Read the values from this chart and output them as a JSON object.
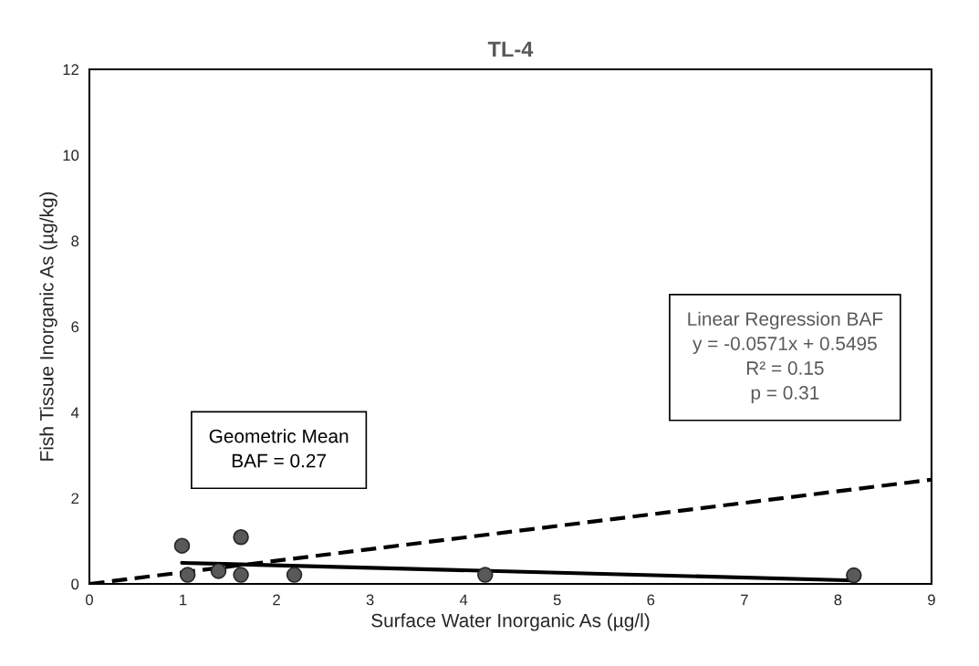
{
  "chart_data": {
    "type": "scatter",
    "title": "TL-4",
    "xlabel": "Surface Water Inorganic As (µg/l)",
    "ylabel": "Fish Tissue Inorganic As (µg/kg)",
    "series": [
      {
        "color": "#595959",
        "marker": "circle",
        "x": [
          0.99,
          1.05,
          1.38,
          1.62,
          1.62,
          2.19,
          4.23,
          8.17
        ],
        "values": [
          0.89,
          0.21,
          0.3,
          1.09,
          0.21,
          0.21,
          0.21,
          0.2
        ]
      },
      {
        "type": "line",
        "color": "#000000",
        "line_style": "solid",
        "x": [
          0.99,
          8.17
        ],
        "values": [
          0.49,
          0.08
        ]
      },
      {
        "type": "line",
        "color": "#000000",
        "line_style": "dashed",
        "x": [
          0,
          9
        ],
        "values": [
          0,
          2.43
        ]
      }
    ],
    "annotations": [
      "Geometric Mean\nBAF = 0.27",
      "Linear Regression BAF\ny = -0.0571x + 0.5495\nR² = 0.15\np = 0.31"
    ],
    "xlim": [
      0,
      9
    ],
    "xticks": [
      0,
      1,
      2,
      3,
      4,
      5,
      6,
      7,
      8,
      9
    ],
    "ylim": [
      0,
      12
    ],
    "yticks": [
      0,
      2,
      4,
      6,
      8,
      10,
      12
    ],
    "grid": false,
    "legend": false
  }
}
